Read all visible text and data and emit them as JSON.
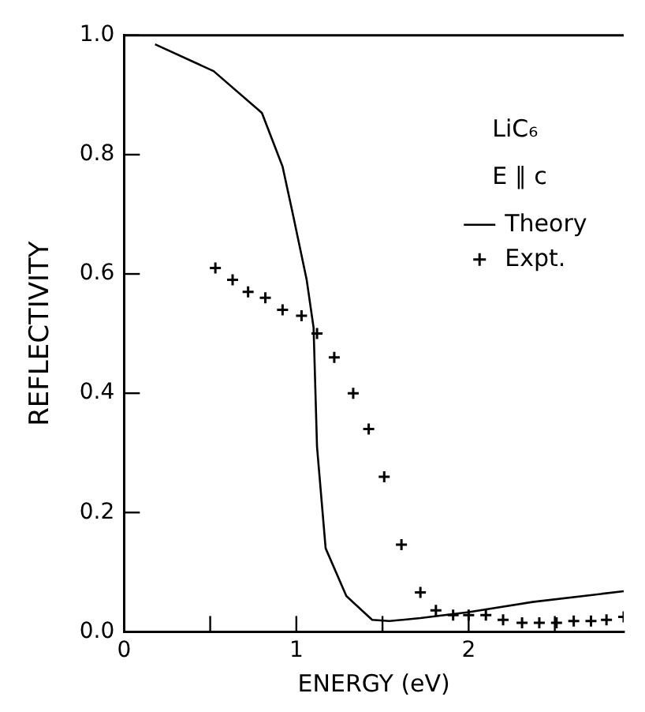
{
  "chart_data": {
    "type": "line",
    "xlabel": "ENERGY (eV)",
    "ylabel": "REFLECTIVITY",
    "annotations": [
      "LiC₆",
      "E ∥ c"
    ],
    "xlim": [
      0,
      2.9
    ],
    "ylim": [
      0,
      1
    ],
    "xticks": [
      0,
      {
        "value": 0.5,
        "label": null
      },
      1,
      {
        "value": 1.5,
        "label": null
      },
      2,
      {
        "value": 2.5,
        "label": null
      }
    ],
    "yticks": [
      {
        "value": 0,
        "label": "0.0"
      },
      0.2,
      0.4,
      0.6,
      0.8,
      {
        "value": 1,
        "label": "1.0"
      }
    ],
    "grid": false,
    "legend": "right",
    "series": [
      {
        "name": "Theory",
        "type": "line",
        "color": "#000000",
        "marker": "none",
        "line_style": "solid",
        "x": [
          0.18,
          0.52,
          0.8,
          0.92,
          0.98,
          1.06,
          1.1,
          1.12,
          1.17,
          1.29,
          1.44,
          1.54,
          1.72,
          2.0,
          2.37,
          2.9
        ],
        "values": [
          0.985,
          0.94,
          0.87,
          0.78,
          0.7,
          0.59,
          0.51,
          0.31,
          0.14,
          0.06,
          0.02,
          0.018,
          0.023,
          0.033,
          0.05,
          0.068
        ]
      },
      {
        "name": "Expt.",
        "type": "scatter",
        "color": "#000000",
        "marker": "cross",
        "x": [
          0.53,
          0.63,
          0.72,
          0.82,
          0.92,
          1.03,
          1.12,
          1.22,
          1.33,
          1.42,
          1.51,
          1.61,
          1.72,
          1.81,
          1.91,
          2.0,
          2.1,
          2.2,
          2.31,
          2.41,
          2.51,
          2.61,
          2.71,
          2.8,
          2.9
        ],
        "values": [
          0.61,
          0.59,
          0.57,
          0.56,
          0.54,
          0.53,
          0.5,
          0.46,
          0.4,
          0.34,
          0.26,
          0.146,
          0.066,
          0.036,
          0.028,
          0.028,
          0.028,
          0.02,
          0.015,
          0.015,
          0.015,
          0.018,
          0.018,
          0.02,
          0.025
        ]
      }
    ]
  }
}
